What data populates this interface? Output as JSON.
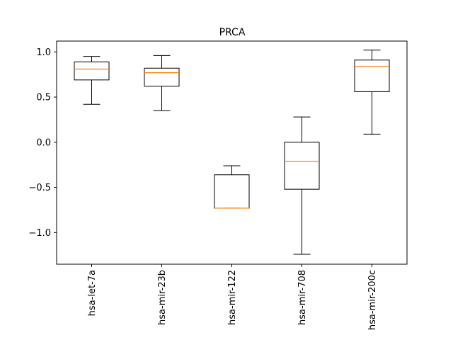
{
  "chart_data": {
    "type": "boxplot",
    "title": "PRCA",
    "xlabel": "",
    "ylabel": "",
    "ylim": [
      -1.35,
      1.12
    ],
    "yticks": [
      {
        "value": 1.0,
        "label": "1.0"
      },
      {
        "value": 0.5,
        "label": "0.5"
      },
      {
        "value": 0.0,
        "label": "0.0"
      },
      {
        "value": -0.5,
        "label": "−0.5"
      },
      {
        "value": -1.0,
        "label": "−1.0"
      }
    ],
    "grid": false,
    "colors": {
      "box": "#000000",
      "median": "#ff7f0e"
    },
    "categories": [
      "hsa-let-7a",
      "hsa-mir-23b",
      "hsa-mir-122",
      "hsa-mir-708",
      "hsa-mir-200c"
    ],
    "boxes": [
      {
        "label": "hsa-let-7a",
        "whislo": 0.42,
        "q1": 0.69,
        "med": 0.81,
        "q3": 0.89,
        "whishi": 0.95
      },
      {
        "label": "hsa-mir-23b",
        "whislo": 0.35,
        "q1": 0.62,
        "med": 0.77,
        "q3": 0.82,
        "whishi": 0.96
      },
      {
        "label": "hsa-mir-122",
        "whislo": -0.73,
        "q1": -0.73,
        "med": -0.73,
        "q3": -0.36,
        "whishi": -0.26
      },
      {
        "label": "hsa-mir-708",
        "whislo": -1.24,
        "q1": -0.52,
        "med": -0.21,
        "q3": 0.0,
        "whishi": 0.28
      },
      {
        "label": "hsa-mir-200c",
        "whislo": 0.09,
        "q1": 0.56,
        "med": 0.84,
        "q3": 0.91,
        "whishi": 1.02
      }
    ]
  }
}
